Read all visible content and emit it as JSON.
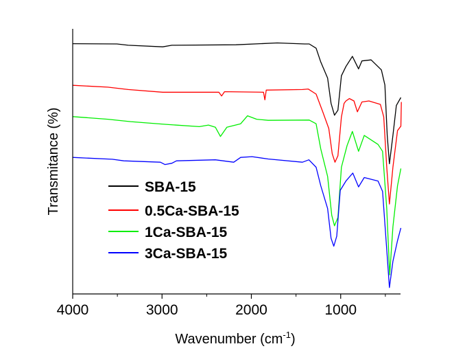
{
  "chart_data": {
    "type": "line",
    "title": "",
    "xlabel": "Wavenumber (cm",
    "xlabel_sup": "-1",
    "xlabel_end": ")",
    "ylabel": "Transmitance (%)",
    "xlim": [
      4000,
      330
    ],
    "x_reversed": true,
    "ylim": [
      0,
      100
    ],
    "y_ticks_shown": false,
    "x_ticks": [
      4000,
      3000,
      2000,
      1000
    ],
    "x_tick_labels": [
      "4000",
      "3000",
      "2000",
      "1000"
    ],
    "x_minor_ticks": [
      3500,
      2500,
      1500,
      500
    ],
    "grid": false,
    "legend_position": "center-left",
    "series": [
      {
        "name": "SBA-15",
        "color": "#000000",
        "x": [
          4000,
          3505,
          3377,
          2992,
          2890,
          2172,
          1710,
          1403,
          1352,
          1275,
          1223,
          1146,
          1108,
          1069,
          1031,
          992,
          941,
          869,
          800,
          762,
          659,
          544,
          505,
          479,
          454,
          415,
          377,
          326
        ],
        "y": [
          94.4,
          94.3,
          93.8,
          93.2,
          93.8,
          94.0,
          94.7,
          94.3,
          94.3,
          92.7,
          87.5,
          81.4,
          71.9,
          67.4,
          69.3,
          82.3,
          85.8,
          89.6,
          84.9,
          87.9,
          88.3,
          84.5,
          78.8,
          59.8,
          49.1,
          59.8,
          71.1,
          74.1
        ]
      },
      {
        "name": "0.5Ca-SBA-15",
        "color": "#ff0000",
        "x": [
          4000,
          3608,
          3377,
          2992,
          2428,
          2364,
          2333,
          2300,
          1864,
          1849,
          1833,
          1428,
          1364,
          1275,
          1198,
          1133,
          1095,
          1064,
          1031,
          992,
          962,
          941,
          903,
          851,
          813,
          762,
          684,
          556,
          518,
          484,
          454,
          415,
          364,
          326,
          321
        ],
        "y": [
          78.7,
          78.0,
          77.1,
          76.1,
          76.1,
          76.1,
          74.7,
          76.3,
          76.1,
          73.2,
          76.9,
          77.1,
          77.3,
          75.4,
          68.5,
          62.4,
          52.9,
          49.7,
          52.1,
          66.8,
          71.9,
          72.8,
          73.7,
          72.8,
          68.7,
          72.4,
          72.8,
          71.5,
          66.8,
          47.8,
          33.9,
          47.8,
          61.6,
          63.3,
          72.4
        ]
      },
      {
        "name": "1Ca-SBA-15",
        "color": "#00ee00",
        "x": [
          4000,
          3608,
          3351,
          2967,
          2582,
          2480,
          2403,
          2346,
          2274,
          2120,
          2043,
          1941,
          1812,
          1352,
          1275,
          1223,
          1146,
          1100,
          1069,
          1031,
          992,
          928,
          869,
          800,
          736,
          582,
          531,
          484,
          451,
          415,
          364,
          326
        ],
        "y": [
          66.9,
          65.9,
          65.0,
          64.0,
          63.1,
          63.7,
          62.9,
          59.4,
          62.9,
          64.2,
          67.2,
          65.9,
          65.5,
          65.6,
          64.2,
          54.7,
          44.3,
          29.7,
          25.7,
          28.8,
          47.8,
          56.0,
          61.3,
          53.8,
          59.8,
          56.4,
          53.8,
          32.2,
          7.2,
          25.3,
          40.8,
          47.3
        ]
      },
      {
        "name": "3Ca-SBA-15",
        "color": "#0000ff",
        "x": [
          4000,
          3556,
          3428,
          3018,
          2967,
          2890,
          2838,
          2403,
          2197,
          2120,
          1992,
          1812,
          1428,
          1356,
          1275,
          1223,
          1146,
          1108,
          1077,
          1044,
          1005,
          941,
          864,
          800,
          736,
          582,
          531,
          484,
          454,
          415,
          364,
          326
        ],
        "y": [
          51.5,
          50.8,
          50.2,
          49.7,
          48.8,
          49.3,
          50.2,
          50.6,
          49.7,
          51.5,
          51.8,
          50.9,
          49.7,
          50.6,
          47.8,
          40.8,
          32.2,
          21.0,
          18.0,
          21.8,
          39.1,
          42.6,
          45.6,
          40.4,
          43.9,
          42.6,
          38.7,
          16.7,
          2.4,
          12.3,
          20.1,
          24.9
        ]
      }
    ]
  }
}
